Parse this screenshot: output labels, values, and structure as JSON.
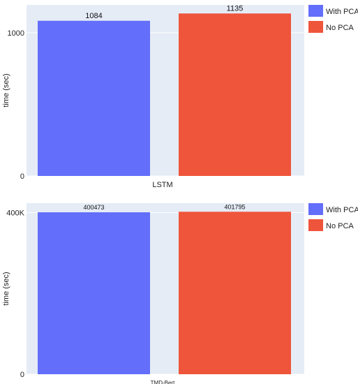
{
  "chart_data": [
    {
      "type": "bar",
      "categories": [
        "LSTM"
      ],
      "series": [
        {
          "name": "With PCA",
          "color": "#636efa",
          "values": [
            1084
          ]
        },
        {
          "name": "No PCA",
          "color": "#ef553b",
          "values": [
            1135
          ]
        }
      ],
      "ylabel": "time (sec)",
      "ylim": [
        0,
        1195
      ],
      "yticks": [
        {
          "value": 0,
          "label": "0"
        },
        {
          "value": 1000,
          "label": "1000"
        }
      ],
      "data_labels": [
        "1084",
        "1135"
      ],
      "plot_background": "#e5ecf6",
      "grid": true,
      "legend_position": "right"
    },
    {
      "type": "bar",
      "categories": [
        "TMD-Bert"
      ],
      "series": [
        {
          "name": "With PCA",
          "color": "#636efa",
          "values": [
            400473
          ]
        },
        {
          "name": "No PCA",
          "color": "#ef553b",
          "values": [
            401795
          ]
        }
      ],
      "ylabel": "time (sec)",
      "ylim": [
        0,
        423000
      ],
      "yticks": [
        {
          "value": 0,
          "label": "0"
        },
        {
          "value": 400000,
          "label": "400K"
        }
      ],
      "data_labels": [
        "400473",
        "401795"
      ],
      "plot_background": "#e5ecf6",
      "grid": true,
      "legend_position": "right"
    }
  ]
}
